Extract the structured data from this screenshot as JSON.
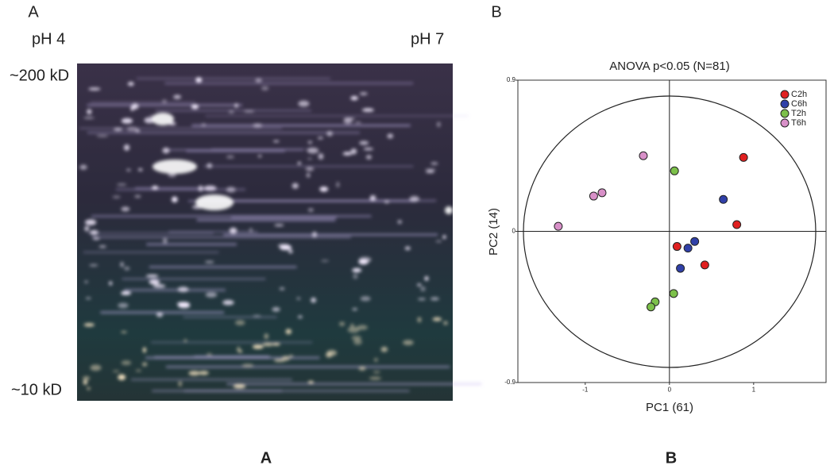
{
  "panels": {
    "a_letter": "A",
    "b_letter": "B",
    "a_caption": "A",
    "b_caption": "B"
  },
  "gel": {
    "left_label": "pH 4",
    "right_label": "pH 7",
    "top_label": "~200 kD",
    "bottom_label": "~10 kD"
  },
  "chart_data": {
    "type": "scatter",
    "title": "ANOVA p<0.05 (N=81)",
    "x_label": "PC1 (61)",
    "y_label": "PC2 (14)",
    "xlim": [
      -1.8,
      1.86
    ],
    "ylim": [
      -0.9,
      0.9
    ],
    "xticks": [
      -1,
      0,
      1
    ],
    "yticks": [
      -0.9,
      0,
      0.9
    ],
    "legend": "top-right",
    "series": [
      {
        "name": "C2h",
        "color": "#e02020",
        "x": [
          0.88,
          0.8,
          0.09,
          0.42
        ],
        "y": [
          0.44,
          0.04,
          -0.09,
          -0.2
        ]
      },
      {
        "name": "C6h",
        "color": "#3040a8",
        "x": [
          0.64,
          0.3,
          0.22,
          0.13
        ],
        "y": [
          0.19,
          -0.06,
          -0.1,
          -0.22
        ]
      },
      {
        "name": "T2h",
        "color": "#7cc04a",
        "x": [
          0.06,
          0.05,
          -0.17,
          -0.22
        ],
        "y": [
          0.36,
          -0.37,
          -0.42,
          -0.45
        ]
      },
      {
        "name": "T6h",
        "color": "#d890c8",
        "x": [
          -0.31,
          -0.8,
          -0.9,
          -1.32
        ],
        "y": [
          0.45,
          0.23,
          0.21,
          0.03
        ]
      }
    ]
  }
}
